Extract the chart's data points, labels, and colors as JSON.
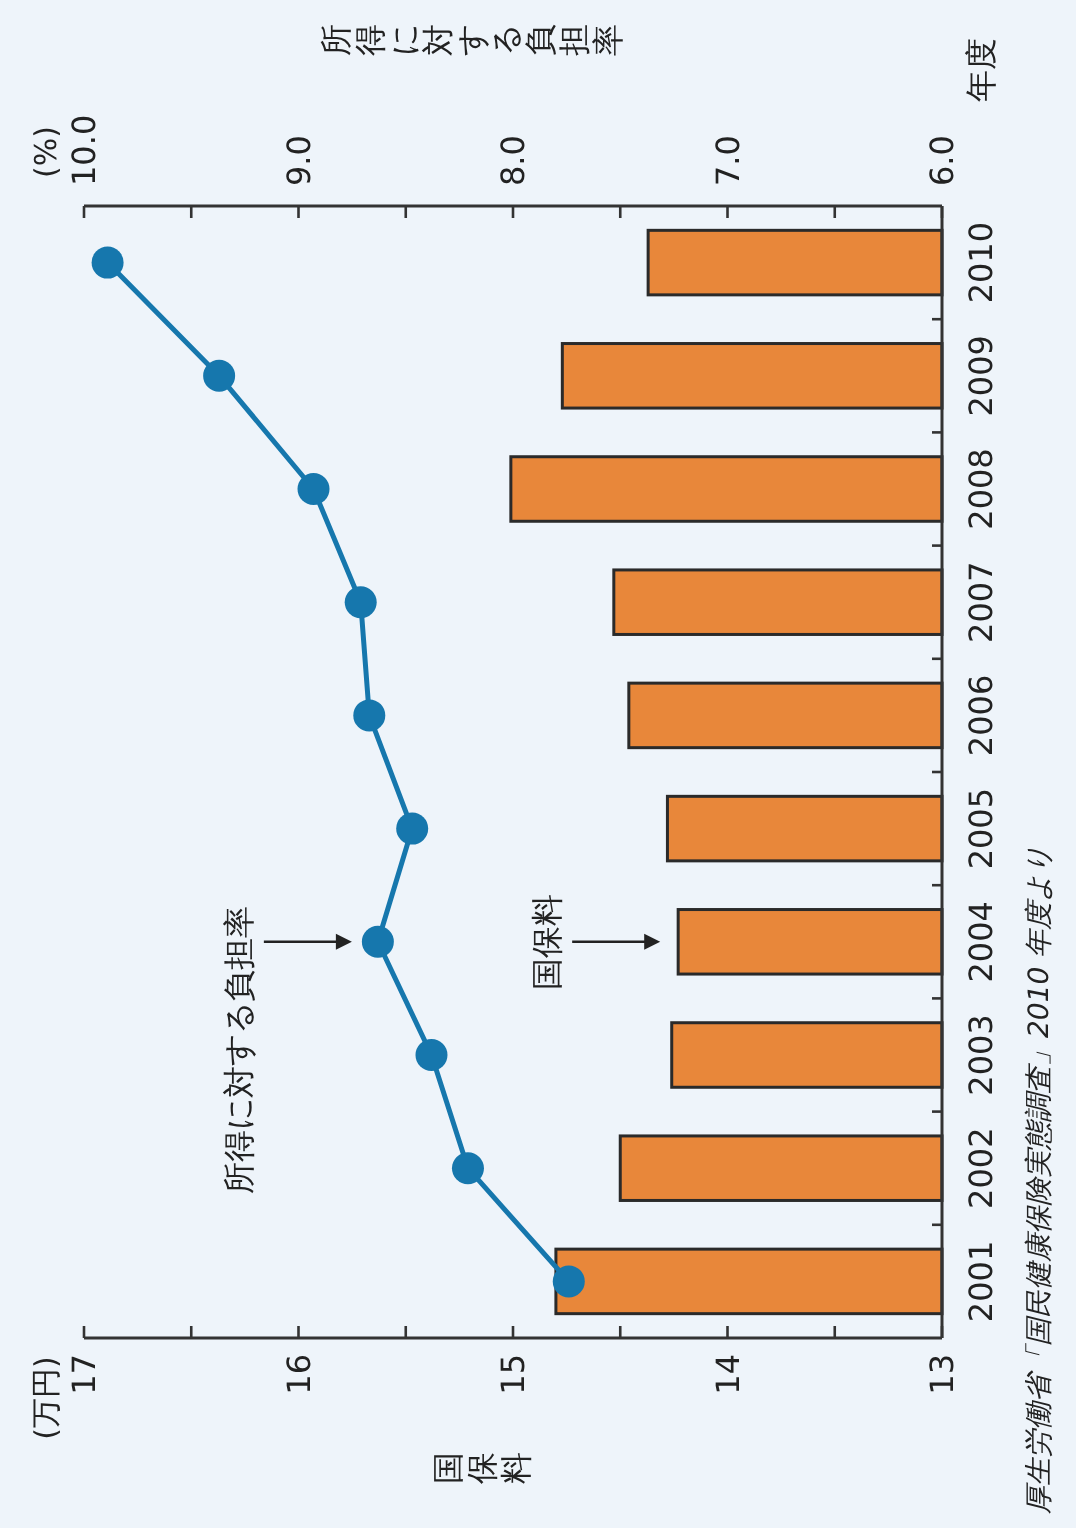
{
  "chart_data": {
    "type": "bar",
    "orientation": "horizontal",
    "categories": [
      "2010",
      "2009",
      "2008",
      "2007",
      "2006",
      "2005",
      "2004",
      "2003",
      "2002",
      "2001"
    ],
    "ylabel": "年度",
    "xlabel": "国保料",
    "x2label": "所得に対する負担率",
    "series": [
      {
        "color": "#e8873a",
        "values": [
          14.37,
          14.77,
          15.01,
          14.53,
          14.46,
          14.28,
          14.23,
          14.26,
          14.5,
          14.8
        ]
      },
      {
        "type": "line",
        "axis": "x2",
        "color": "#1677ad",
        "values": [
          9.89,
          9.37,
          8.93,
          8.71,
          8.67,
          8.47,
          8.63,
          8.38,
          8.21,
          7.74
        ]
      }
    ],
    "xlim": [
      17,
      13
    ],
    "xticks": [
      17,
      {
        "value": 16.5,
        "label": null
      },
      16,
      {
        "value": 15.5,
        "label": null
      },
      15,
      {
        "value": 14.5,
        "label": null
      },
      14,
      {
        "value": 13.5,
        "label": null
      },
      13
    ],
    "x2lim": [
      10,
      6
    ],
    "x2ticks": [
      {
        "value": 10,
        "label": "10.0"
      },
      {
        "value": 9.5,
        "label": null
      },
      {
        "value": 9,
        "label": "9.0"
      },
      {
        "value": 8.5,
        "label": null
      },
      {
        "value": 8,
        "label": "8.0"
      },
      {
        "value": 7.5,
        "label": null
      },
      {
        "value": 7,
        "label": "7.0"
      },
      {
        "value": 6.5,
        "label": null
      },
      {
        "value": 6,
        "label": "6.0"
      }
    ],
    "marker": "circle",
    "grid": false,
    "annotations": [
      "(万円)",
      "(%)",
      "厚生労働省「国民健康保険実態調査」2010 年度より",
      "所得に対する負担率",
      "国保料"
    ]
  }
}
